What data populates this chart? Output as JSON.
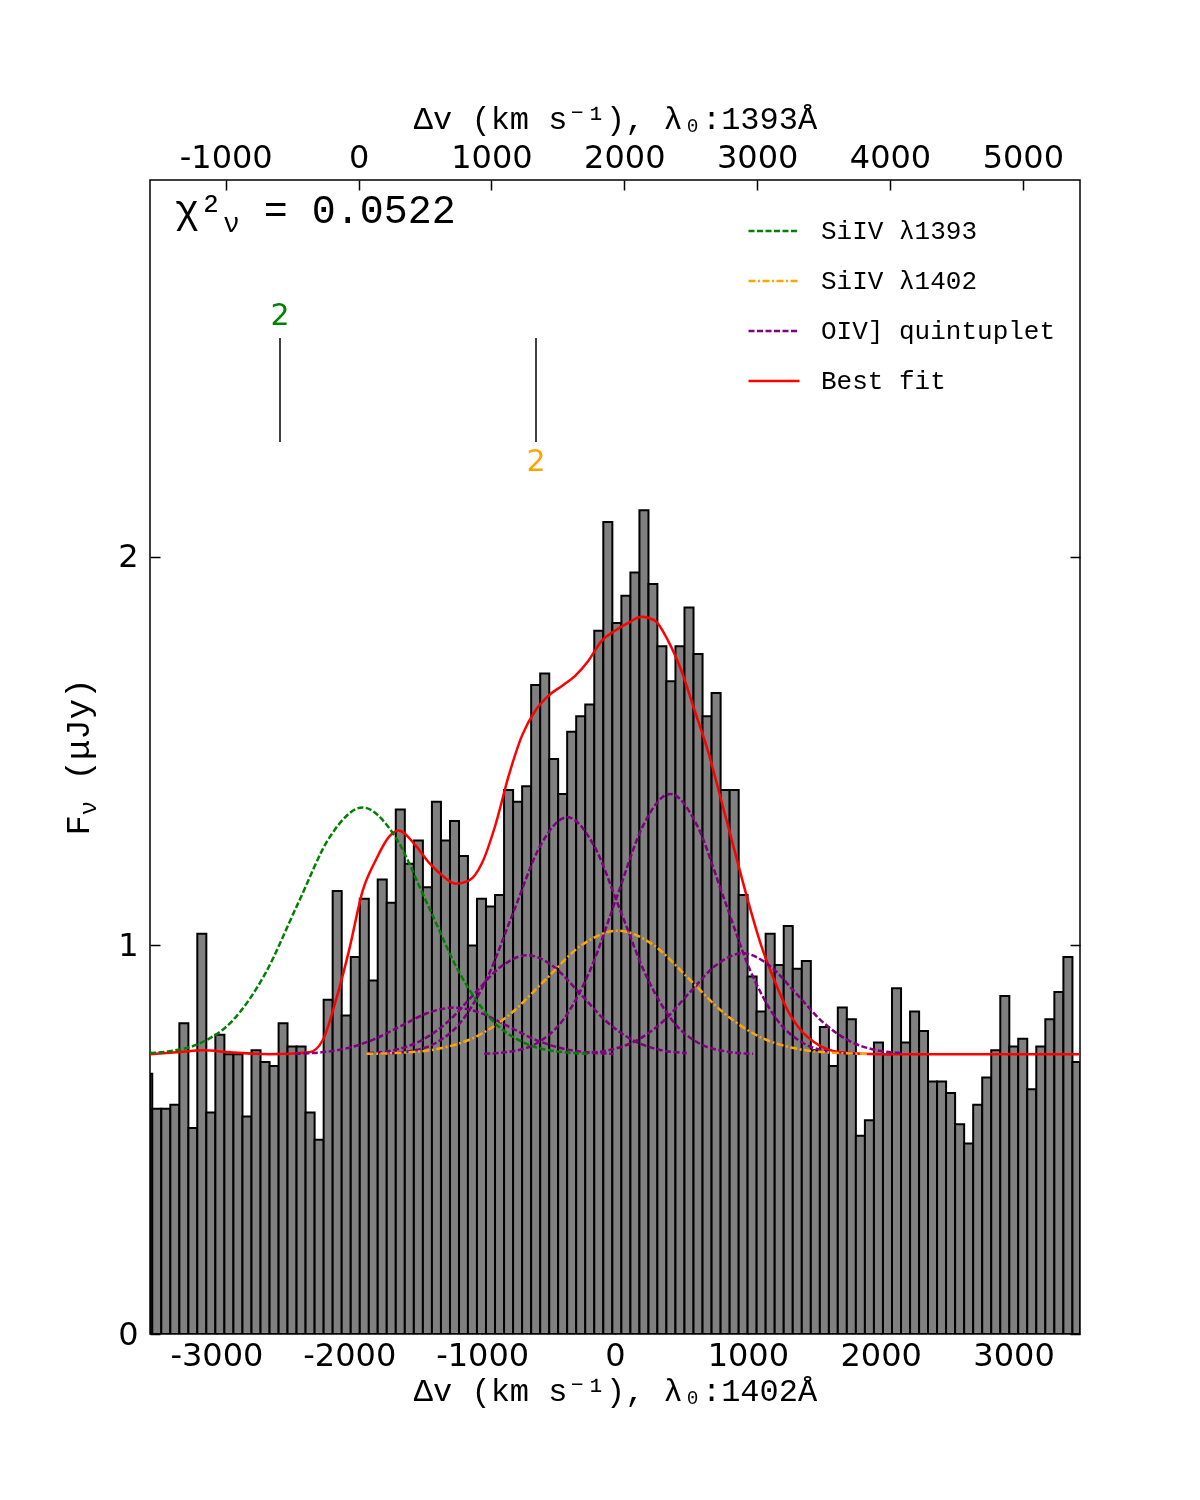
{
  "chart_data": {
    "type": "histogram",
    "xlabel": "Δv (km s⁻¹), λ₀:1402Å",
    "x2label": "Δv (km s⁻¹), λ₀:1393Å",
    "ylabel": "F$_{ν}$ (μJy)",
    "xlim": [
      -3500,
      3500
    ],
    "xticks": [
      -3000,
      -2000,
      -1000,
      0,
      1000,
      2000,
      3000
    ],
    "x2lim": [
      -1570,
      5430
    ],
    "x2ticks": [
      -1000,
      0,
      1000,
      2000,
      3000,
      4000,
      5000
    ],
    "ylim": [
      0,
      2.97
    ],
    "yticks": [
      0,
      1,
      2
    ],
    "grid": false,
    "legend": "top right",
    "color": "#808080",
    "bins": [
      -3500,
      -3483,
      -3415,
      -3347,
      -3279,
      -3211,
      -3144,
      -3076,
      -3008,
      -2940,
      -2872,
      -2804,
      -2736,
      -2668,
      -2600,
      -2532,
      -2465,
      -2397,
      -2329,
      -2261,
      -2193,
      -2125,
      -2057,
      -1989,
      -1921,
      -1853,
      -1786,
      -1718,
      -1650,
      -1582,
      -1514,
      -1446,
      -1378,
      -1310,
      -1242,
      -1174,
      -1107,
      -1039,
      -971,
      -903,
      -835,
      -767,
      -699,
      -631,
      -563,
      -495,
      -428,
      -360,
      -292,
      -224,
      -156,
      -88,
      -20,
      48,
      116,
      184,
      252,
      319,
      387,
      455,
      523,
      591,
      659,
      727,
      795,
      863,
      931,
      998,
      1066,
      1134,
      1202,
      1270,
      1338,
      1406,
      1474,
      1542,
      1610,
      1677,
      1745,
      1813,
      1881,
      1949,
      2017,
      2085,
      2153,
      2221,
      2289,
      2356,
      2424,
      2492,
      2560,
      2628,
      2696,
      2764,
      2832,
      2900,
      2968,
      3035,
      3103,
      3171,
      3239,
      3307,
      3375,
      3443,
      3500
    ],
    "values": [
      0.67,
      0.58,
      0.58,
      0.59,
      0.8,
      0.53,
      1.03,
      0.57,
      0.77,
      0.72,
      0.72,
      0.56,
      0.73,
      0.7,
      0.69,
      0.8,
      0.74,
      0.74,
      0.57,
      0.5,
      0.86,
      1.14,
      0.82,
      0.97,
      1.12,
      0.91,
      1.17,
      1.11,
      1.35,
      1.21,
      1.27,
      1.15,
      1.37,
      1.27,
      1.32,
      1.23,
      1.0,
      1.12,
      1.1,
      1.13,
      1.4,
      1.37,
      1.41,
      1.67,
      1.7,
      1.48,
      1.39,
      1.55,
      1.59,
      1.62,
      1.81,
      2.09,
      1.83,
      1.9,
      1.96,
      2.12,
      1.93,
      1.77,
      1.68,
      1.77,
      1.87,
      1.75,
      1.59,
      1.65,
      1.4,
      1.4,
      1.13,
      0.92,
      0.83,
      1.03,
      0.95,
      1.05,
      0.94,
      0.96,
      0.73,
      0.79,
      0.69,
      0.84,
      0.81,
      0.51,
      0.55,
      0.75,
      0.72,
      0.89,
      0.75,
      0.83,
      0.78,
      0.65,
      0.65,
      0.62,
      0.54,
      0.49,
      0.59,
      0.66,
      0.73,
      0.87,
      0.74,
      0.76,
      0.63,
      0.74,
      0.81,
      0.88,
      0.97,
      0.7
    ],
    "series": [
      {
        "type": "line",
        "name": "SiIV λ1393",
        "color": "#008000",
        "line_style": "dashed",
        "x": [
          -3500,
          -3370,
          -3125,
          -2880,
          -2635,
          -2390,
          -2145,
          -1900,
          -1655,
          -1410,
          -1165,
          -920,
          -675,
          -430,
          -185
        ],
        "values": [
          0.723,
          0.727,
          0.748,
          0.806,
          0.926,
          1.105,
          1.28,
          1.355,
          1.28,
          1.105,
          0.926,
          0.806,
          0.748,
          0.727,
          0.721
        ]
      },
      {
        "type": "line",
        "name": "SiIV λ1402",
        "color": "#ffa500",
        "line_style": "dashdot",
        "x": [
          -1870,
          -1600,
          -1330,
          -1060,
          -790,
          -520,
          -250,
          20,
          290,
          560,
          830,
          1100,
          1370,
          1640,
          1910
        ],
        "values": [
          0.721,
          0.724,
          0.734,
          0.763,
          0.823,
          0.913,
          1.001,
          1.038,
          1.001,
          0.913,
          0.823,
          0.763,
          0.734,
          0.724,
          0.721
        ]
      },
      {
        "type": "line",
        "name": "OIV] quintuplet",
        "color": "#800080",
        "line_style": "dashed",
        "x": [
          -2410,
          -2210,
          -2010,
          -1810,
          -1610,
          -1410,
          -1210,
          -1010,
          -810,
          -610,
          -410,
          -210,
          -10
        ],
        "values": [
          0.721,
          0.725,
          0.736,
          0.759,
          0.793,
          0.826,
          0.84,
          0.826,
          0.793,
          0.759,
          0.736,
          0.725,
          0.721
        ]
      },
      {
        "type": "line",
        "color": "#800080",
        "line_style": "dashed",
        "x": [
          -1860,
          -1660,
          -1460,
          -1260,
          -1060,
          -860,
          -660,
          -460,
          -260,
          -60,
          140,
          340,
          540
        ],
        "values": [
          0.723,
          0.731,
          0.755,
          0.803,
          0.875,
          0.945,
          0.975,
          0.945,
          0.875,
          0.803,
          0.755,
          0.731,
          0.723
        ]
      },
      {
        "type": "line",
        "color": "#800080",
        "line_style": "dashed",
        "x": [
          -1760,
          -1560,
          -1360,
          -1160,
          -960,
          -760,
          -560,
          -360,
          -160,
          40,
          240,
          440,
          640,
          840,
          1040
        ],
        "values": [
          0.721,
          0.727,
          0.747,
          0.803,
          0.918,
          1.09,
          1.258,
          1.33,
          1.258,
          1.09,
          0.918,
          0.803,
          0.747,
          0.727,
          0.721
        ]
      },
      {
        "type": "line",
        "color": "#800080",
        "line_style": "dashed",
        "x": [
          -985,
          -785,
          -585,
          -385,
          -185,
          15,
          215,
          415,
          615,
          815,
          1015,
          1215,
          1415,
          1615,
          1815
        ],
        "values": [
          0.721,
          0.727,
          0.749,
          0.811,
          0.938,
          1.126,
          1.311,
          1.39,
          1.311,
          1.126,
          0.938,
          0.811,
          0.749,
          0.727,
          0.721
        ]
      },
      {
        "type": "line",
        "color": "#800080",
        "line_style": "dashed",
        "x": [
          -240,
          -40,
          160,
          360,
          560,
          760,
          960,
          1160,
          1360,
          1560,
          1760,
          1960,
          2160
        ],
        "values": [
          0.723,
          0.731,
          0.755,
          0.804,
          0.878,
          0.949,
          0.98,
          0.949,
          0.878,
          0.804,
          0.755,
          0.731,
          0.723
        ]
      },
      {
        "type": "line",
        "name": "Best fit",
        "color": "#ff0000",
        "line_style": "solid",
        "x": [
          -3500,
          -3300,
          -3100,
          -2900,
          -2600,
          -2300,
          -2200,
          -2100,
          -2000,
          -1900,
          -1800,
          -1700,
          -1630,
          -1500,
          -1400,
          -1300,
          -1200,
          -1100,
          -1000,
          -900,
          -800,
          -700,
          -600,
          -500,
          -400,
          -300,
          -200,
          -100,
          0,
          100,
          200,
          300,
          400,
          500,
          600,
          700,
          800,
          900,
          1000,
          1100,
          1200,
          1300,
          1400,
          1500,
          1700,
          2000,
          3500
        ],
        "values": [
          0.72,
          0.725,
          0.73,
          0.725,
          0.72,
          0.725,
          0.756,
          0.86,
          0.99,
          1.14,
          1.22,
          1.28,
          1.296,
          1.257,
          1.213,
          1.18,
          1.159,
          1.167,
          1.213,
          1.31,
          1.437,
          1.54,
          1.604,
          1.643,
          1.668,
          1.694,
          1.733,
          1.784,
          1.81,
          1.83,
          1.846,
          1.836,
          1.784,
          1.707,
          1.604,
          1.5,
          1.373,
          1.244,
          1.116,
          1.0,
          0.91,
          0.833,
          0.781,
          0.751,
          0.725,
          0.72,
          0.72
        ]
      }
    ],
    "annotations": [
      "χ²$_{ν}$ = 0.0522",
      "2",
      "2"
    ]
  }
}
